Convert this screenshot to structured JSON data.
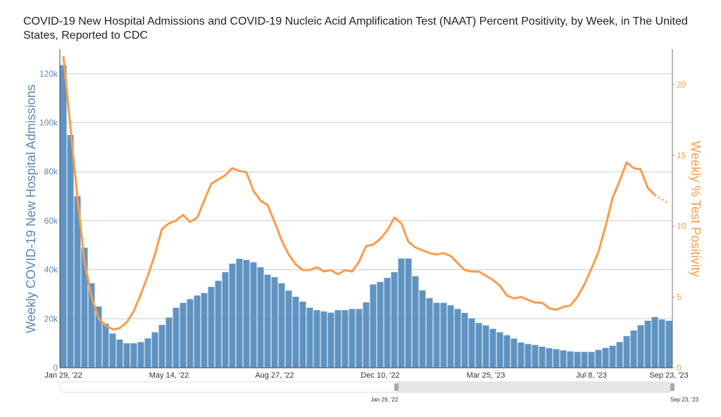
{
  "chart_data": {
    "type": "bar+line",
    "title": "COVID-19 New Hospital Admissions and COVID-19 Nucleic Acid Amplification Test (NAAT) Percent Positivity, by Week, in The United States, Reported to CDC",
    "ylabel": "Weekly COVID-19 New Hospital Admissions",
    "y2label": "Weekly % Test Positivity",
    "ylim": [
      0,
      130000
    ],
    "y2lim": [
      0,
      22.5
    ],
    "yticks": [
      {
        "v": 0,
        "label": "0"
      },
      {
        "v": 20000,
        "label": "20k"
      },
      {
        "v": 40000,
        "label": "40k"
      },
      {
        "v": 60000,
        "label": "60k"
      },
      {
        "v": 80000,
        "label": "80k"
      },
      {
        "v": 100000,
        "label": "100k"
      },
      {
        "v": 120000,
        "label": "120k"
      }
    ],
    "y2ticks": [
      {
        "v": 0,
        "label": "0"
      },
      {
        "v": 5,
        "label": "5"
      },
      {
        "v": 10,
        "label": "10"
      },
      {
        "v": 15,
        "label": "15"
      },
      {
        "v": 20,
        "label": "20"
      }
    ],
    "xticks": [
      {
        "i": 0,
        "label": "Jan 29, '22"
      },
      {
        "i": 15,
        "label": "May 14, '22"
      },
      {
        "i": 30,
        "label": "Aug 27, '22"
      },
      {
        "i": 45,
        "label": "Dec 10, '22"
      },
      {
        "i": 60,
        "label": "Mar 25, '23"
      },
      {
        "i": 75,
        "label": "Jul 8, '23"
      },
      {
        "i": 86,
        "label": "Sep 23, '23"
      }
    ],
    "range_slider": {
      "start_label": "Jan 29, '22",
      "end_label": "Sep 23, '23"
    },
    "series": [
      {
        "name": "Weekly COVID-19 New Hospital Admissions",
        "type": "bar",
        "color": "#5f93c2",
        "values": [
          123500,
          95000,
          70000,
          49000,
          34500,
          25000,
          18000,
          14000,
          11500,
          10000,
          10000,
          10500,
          12000,
          14500,
          17500,
          20500,
          24500,
          26500,
          28000,
          29500,
          30500,
          33000,
          35500,
          39000,
          42500,
          44500,
          44000,
          43000,
          41000,
          38000,
          37000,
          34500,
          31500,
          29000,
          27000,
          24500,
          23500,
          23000,
          22500,
          23500,
          23500,
          24000,
          24000,
          26700,
          34000,
          35000,
          36700,
          39000,
          44600,
          44600,
          37400,
          31600,
          28400,
          26500,
          26500,
          25500,
          24000,
          22400,
          20200,
          18300,
          17300,
          15900,
          14500,
          13300,
          11900,
          10300,
          9700,
          9300,
          8600,
          8000,
          7600,
          7100,
          6700,
          6500,
          6500,
          6500,
          7300,
          8100,
          9000,
          10500,
          12900,
          15200,
          17400,
          19200,
          20700,
          19700,
          19200
        ]
      },
      {
        "name": "Weekly % Test Positivity",
        "type": "line",
        "color": "#ff9a47",
        "dotted_last_points": 2,
        "values": [
          22,
          17,
          12,
          7.5,
          5,
          3.5,
          3,
          2.7,
          2.8,
          3.2,
          4,
          5.2,
          6.5,
          8,
          9.8,
          10.2,
          10.4,
          10.8,
          10.3,
          10.6,
          11.8,
          13,
          13.3,
          13.6,
          14.1,
          13.9,
          13.8,
          12.5,
          11.8,
          11.5,
          10.3,
          9,
          8,
          7.3,
          6.9,
          6.9,
          7.1,
          6.8,
          6.9,
          6.6,
          6.9,
          6.8,
          7.5,
          8.6,
          8.7,
          9.1,
          9.7,
          10.6,
          10.2,
          8.9,
          8.5,
          8.3,
          8.1,
          8.0,
          8.1,
          7.9,
          7.4,
          6.9,
          6.8,
          6.8,
          6.5,
          6.2,
          5.8,
          5.1,
          4.9,
          5.0,
          4.8,
          4.6,
          4.6,
          4.2,
          4.1,
          4.3,
          4.4,
          5.0,
          5.9,
          7.0,
          8.2,
          10.0,
          12.0,
          13.2,
          14.5,
          14.1,
          14.0,
          12.7,
          12.2,
          11.9,
          11.6
        ]
      }
    ]
  }
}
